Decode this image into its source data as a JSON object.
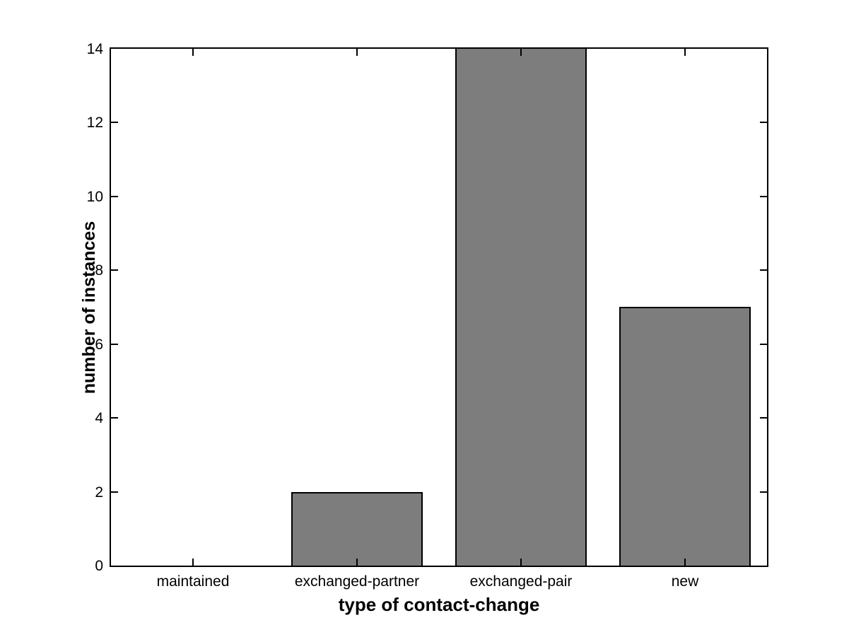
{
  "chart_data": {
    "type": "bar",
    "categories": [
      "maintained",
      "exchanged-partner",
      "exchanged-pair",
      "new"
    ],
    "values": [
      0,
      2,
      14,
      7
    ],
    "title": "",
    "xlabel": "type of contact-change",
    "ylabel": "number of instances",
    "ylim": [
      0,
      14
    ],
    "yticks": [
      0,
      2,
      4,
      6,
      8,
      10,
      12,
      14
    ],
    "bar_color": "#7d7d7d",
    "bar_edge_color": "#000000",
    "axis_color": "#000000",
    "background_color": "#ffffff",
    "bar_width_fraction": 0.8,
    "grid": false,
    "legend": null
  }
}
